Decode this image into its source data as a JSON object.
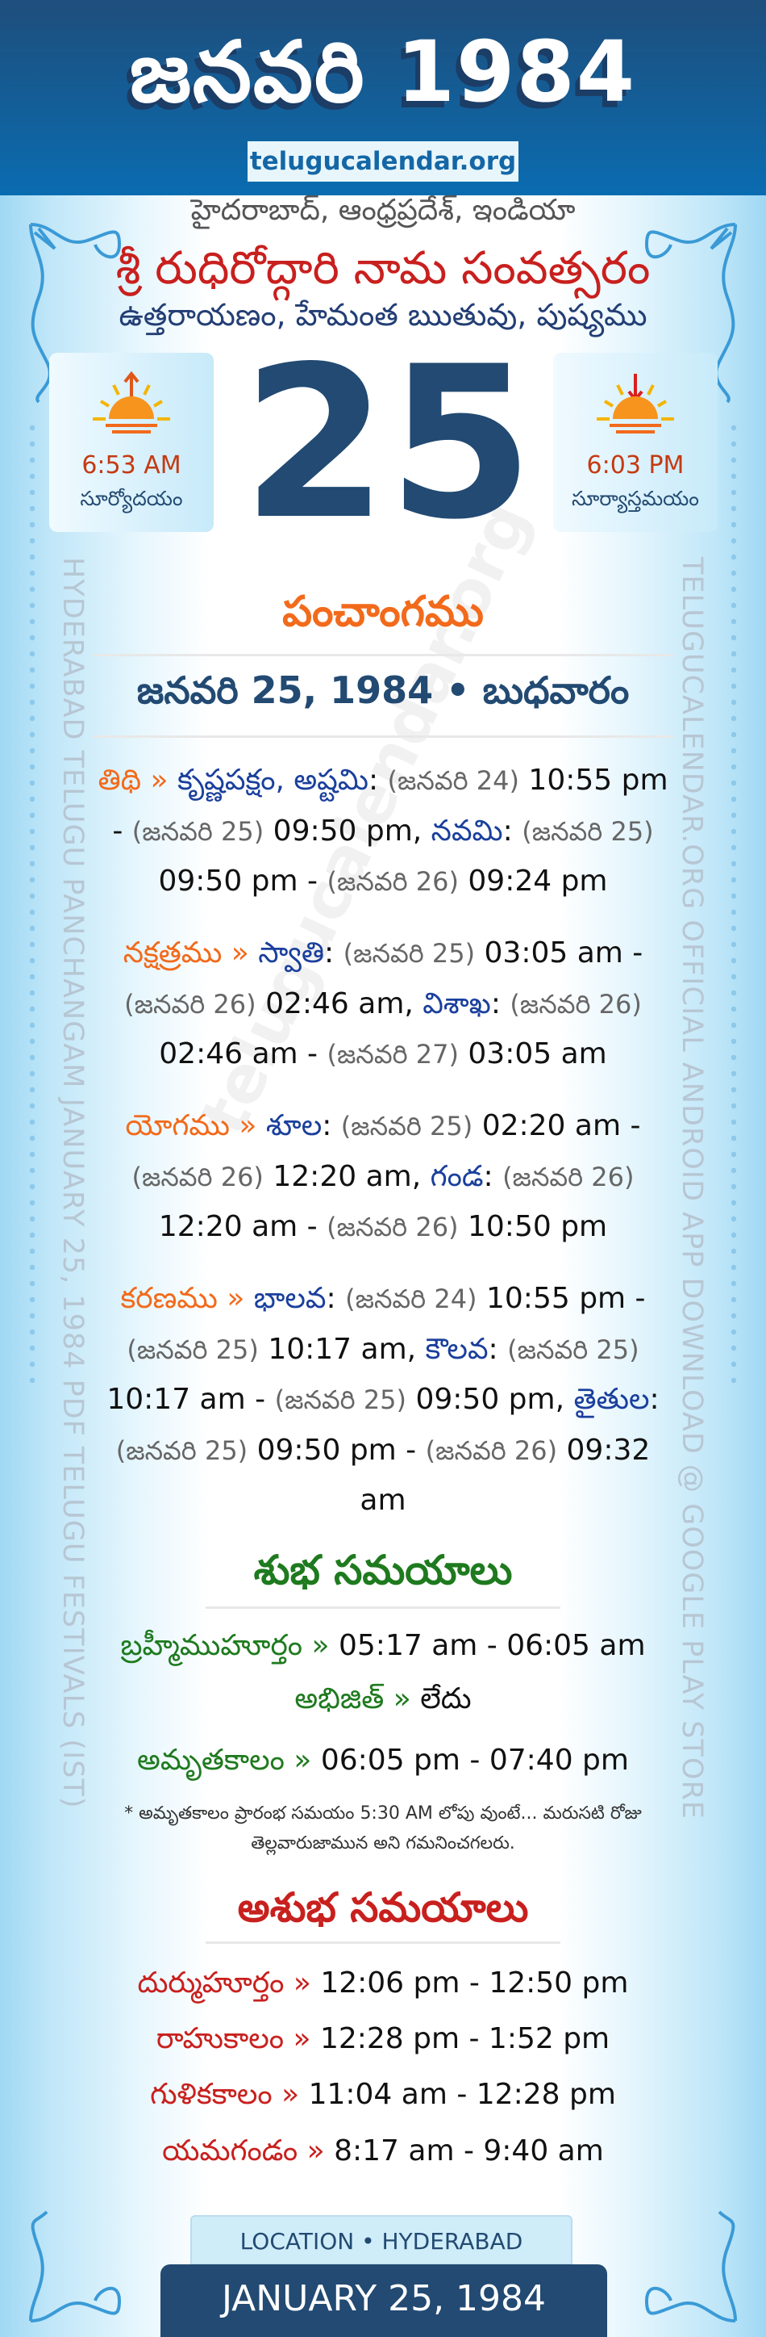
{
  "header": {
    "title": "జనవరి 1984",
    "site": "telugucalendar.org"
  },
  "location_line": "హైదరాబాద్, ఆంధ్రప్రదేశ్, ఇండియా",
  "samvatsaram": "శ్రీ రుధిరోద్గారి నామ సంవత్సరం",
  "ayana": "ఉత్తరాయణం, హేమంత ఋతువు, పుష్యము",
  "sunrise": {
    "time": "6:53 AM",
    "label": "సూర్యోదయం",
    "icon": "sunrise-icon"
  },
  "sunset": {
    "time": "6:03 PM",
    "label": "సూర్యాస్తమయం",
    "icon": "sunset-icon"
  },
  "day": "25",
  "panchangam": {
    "heading": "పంచాంగము",
    "date_line": "జనవరి 25, 1984 • బుధవారం",
    "entries": [
      {
        "label": "తిథి",
        "sep": "»",
        "items": [
          {
            "name": "కృష్ణపక్షం, అష్టమి",
            "start_date": "(జనవరి 24)",
            "start_time": "10:55 pm",
            "end_date": "(జనవరి 25)",
            "end_time": "09:50 pm"
          },
          {
            "name": "నవమి",
            "start_date": "(జనవరి 25)",
            "start_time": "09:50 pm",
            "end_date": "(జనవరి 26)",
            "end_time": "09:24 pm"
          }
        ]
      },
      {
        "label": "నక్షత్రము",
        "sep": "»",
        "items": [
          {
            "name": "స్వాతి",
            "start_date": "(జనవరి 25)",
            "start_time": "03:05 am",
            "end_date": "(జనవరి 26)",
            "end_time": "02:46 am"
          },
          {
            "name": "విశాఖ",
            "start_date": "(జనవరి 26)",
            "start_time": "02:46 am",
            "end_date": "(జనవరి 27)",
            "end_time": "03:05 am"
          }
        ]
      },
      {
        "label": "యోగము",
        "sep": "»",
        "items": [
          {
            "name": "శూల",
            "start_date": "(జనవరి 25)",
            "start_time": "02:20 am",
            "end_date": "(జనవరి 26)",
            "end_time": "12:20 am"
          },
          {
            "name": "గండ",
            "start_date": "(జనవరి 26)",
            "start_time": "12:20 am",
            "end_date": "(జనవరి 26)",
            "end_time": "10:50 pm"
          }
        ]
      },
      {
        "label": "కరణము",
        "sep": "»",
        "items": [
          {
            "name": "భాలవ",
            "start_date": "(జనవరి 24)",
            "start_time": "10:55 pm",
            "end_date": "(జనవరి 25)",
            "end_time": "10:17 am"
          },
          {
            "name": "కౌలవ",
            "start_date": "(జనవరి 25)",
            "start_time": "10:17 am",
            "end_date": "(జనవరి 25)",
            "end_time": "09:50 pm"
          },
          {
            "name": "తైతుల",
            "start_date": "(జనవరి 25)",
            "start_time": "09:50 pm",
            "end_date": "(జనవరి 26)",
            "end_time": "09:32 am"
          }
        ]
      }
    ]
  },
  "shubha": {
    "heading": "శుభ సమయాలు",
    "rows": [
      {
        "label": "బ్రహ్మీముహూర్తం",
        "sep": "»",
        "value": "05:17 am - 06:05 am"
      },
      {
        "label": "అభిజిత్",
        "sep": "»",
        "value": "లేదు"
      },
      {
        "label": "అమృతకాలం",
        "sep": "»",
        "value": "06:05 pm - 07:40 pm"
      }
    ],
    "note": "* అమృతకాలం ప్రారంభ సమయం 5:30 AM లోపు వుంటే... మరుసటి రోజు తెల్లవారుజామున అని గమనించగలరు."
  },
  "ashubha": {
    "heading": "అశుభ సమయాలు",
    "rows": [
      {
        "label": "దుర్ముహూర్తం",
        "sep": "»",
        "value": "12:06 pm - 12:50 pm"
      },
      {
        "label": "రాహుకాలం",
        "sep": "»",
        "value": "12:28 pm - 1:52 pm"
      },
      {
        "label": "గుళికకాలం",
        "sep": "»",
        "value": "11:04 am - 12:28 pm"
      },
      {
        "label": "యమగండం",
        "sep": "»",
        "value": "8:17 am - 9:40 am"
      }
    ]
  },
  "side_left": "HYDERABAD TELUGU PANCHANGAM JANUARY 25, 1984 PDF TELUGU FESTIVALS (IST)",
  "side_right": "TELUGUCALENDAR.ORG OFFICIAL ANDROID APP DOWNLOAD @ GOOGLE PLAY STORE",
  "watermark": "telugucalendar.org",
  "footer": {
    "location": "LOCATION • HYDERABAD",
    "date": "JANUARY 25, 1984"
  },
  "colors": {
    "navy": "#224a72",
    "orange": "#f26a1b",
    "blue": "#1a3f9c",
    "green": "#1e7a1e",
    "red": "#c8201e"
  }
}
